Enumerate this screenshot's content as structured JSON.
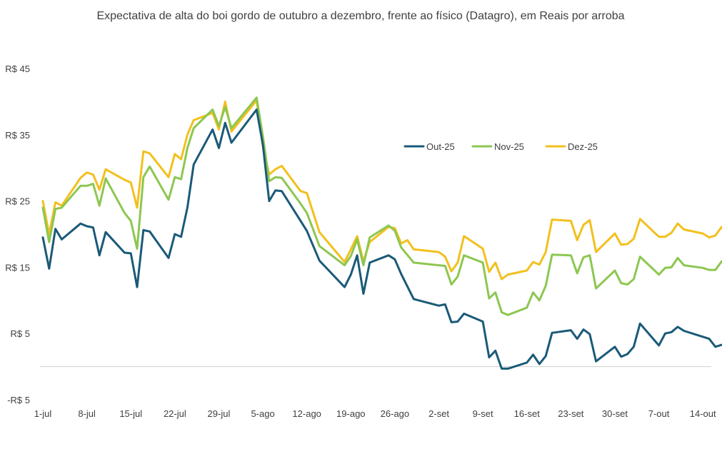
{
  "chart_data": {
    "type": "line",
    "title": "Expectativa de alta do boi gordo de outubro a dezembro, frente ao físico (Datagro), em Reais por arroba",
    "xlabel": "",
    "ylabel": "",
    "ylim": [
      -5,
      45
    ],
    "y_ticks": [
      45,
      35,
      25,
      15,
      5,
      -5
    ],
    "y_tick_labels": [
      "R$ 45",
      "R$ 35",
      "R$ 25",
      "R$ 15",
      "R$ 5",
      "-R$ 5"
    ],
    "x_ticks": [
      0,
      7,
      14,
      21,
      28,
      35,
      42,
      49,
      56,
      63,
      70,
      77,
      84,
      91,
      98,
      105
    ],
    "x_tick_labels": [
      "1-jul",
      "8-jul",
      "15-jul",
      "22-jul",
      "29-jul",
      "5-ago",
      "12-ago",
      "19-ago",
      "26-ago",
      "2-set",
      "9-set",
      "16-set",
      "23-set",
      "30-set",
      "7-out",
      "14-out"
    ],
    "x_range": [
      0,
      106
    ],
    "grid": false,
    "legend_position": "top-right",
    "colors": {
      "Out-25": "#1a5a78",
      "Nov-25": "#8cc751",
      "Dez-25": "#f2c01e",
      "zero_line": "#d0d0d0"
    },
    "series": [
      {
        "name": "Out-25",
        "points": [
          [
            0,
            19.5
          ],
          [
            1,
            14.8
          ],
          [
            2,
            20.8
          ],
          [
            3,
            19.2
          ],
          [
            6,
            21.6
          ],
          [
            7,
            21.2
          ],
          [
            8,
            21
          ],
          [
            9,
            16.8
          ],
          [
            10,
            20.3
          ],
          [
            13,
            17.2
          ],
          [
            14,
            17.1
          ],
          [
            15,
            12
          ],
          [
            16,
            20.6
          ],
          [
            17,
            20.4
          ],
          [
            20,
            16.4
          ],
          [
            21,
            20
          ],
          [
            22,
            19.6
          ],
          [
            23,
            24
          ],
          [
            24,
            30.5
          ],
          [
            27,
            35.8
          ],
          [
            28,
            33
          ],
          [
            29,
            36.8
          ],
          [
            30,
            33.8
          ],
          [
            34,
            38.8
          ],
          [
            35,
            33.5
          ],
          [
            36,
            25
          ],
          [
            37,
            26.6
          ],
          [
            38,
            26.5
          ],
          [
            41,
            22
          ],
          [
            42,
            20.5
          ],
          [
            44,
            16
          ],
          [
            48,
            12
          ],
          [
            49,
            13.9
          ],
          [
            50,
            16.8
          ],
          [
            51,
            11
          ],
          [
            52,
            15.7
          ],
          [
            55,
            16.8
          ],
          [
            56,
            16.2
          ],
          [
            57,
            14
          ],
          [
            59,
            10.2
          ],
          [
            63,
            9.2
          ],
          [
            64,
            9.4
          ],
          [
            65,
            6.7
          ],
          [
            66,
            6.8
          ],
          [
            67,
            8
          ],
          [
            70,
            6.8
          ],
          [
            71,
            1.4
          ],
          [
            72,
            2.4
          ],
          [
            73,
            -0.3
          ],
          [
            74,
            -0.3
          ],
          [
            77,
            0.6
          ],
          [
            78,
            1.8
          ],
          [
            79,
            0.4
          ],
          [
            80,
            1.6
          ],
          [
            81,
            5.1
          ],
          [
            84,
            5.5
          ],
          [
            85,
            4.2
          ],
          [
            86,
            5.6
          ],
          [
            87,
            4.9
          ],
          [
            88,
            0.8
          ],
          [
            91,
            3
          ],
          [
            92,
            1.5
          ],
          [
            93,
            1.9
          ],
          [
            94,
            3
          ],
          [
            95,
            6.5
          ],
          [
            98,
            3.2
          ],
          [
            99,
            5
          ],
          [
            100,
            5.2
          ],
          [
            101,
            6
          ],
          [
            102,
            5.4
          ],
          [
            105,
            4.5
          ],
          [
            106,
            4.2
          ],
          [
            107,
            3
          ],
          [
            108,
            3.3
          ]
        ]
      },
      {
        "name": "Nov-25",
        "points": [
          [
            0,
            24
          ],
          [
            1,
            18.8
          ],
          [
            2,
            23.8
          ],
          [
            3,
            24
          ],
          [
            6,
            27.3
          ],
          [
            7,
            27.3
          ],
          [
            8,
            27.6
          ],
          [
            9,
            24.3
          ],
          [
            10,
            28.4
          ],
          [
            13,
            23.2
          ],
          [
            14,
            22
          ],
          [
            15,
            17.8
          ],
          [
            16,
            28.6
          ],
          [
            17,
            30.2
          ],
          [
            20,
            25.2
          ],
          [
            21,
            28.6
          ],
          [
            22,
            28.3
          ],
          [
            23,
            33
          ],
          [
            24,
            36
          ],
          [
            27,
            38.8
          ],
          [
            28,
            36.3
          ],
          [
            29,
            39.2
          ],
          [
            30,
            36
          ],
          [
            34,
            40.6
          ],
          [
            35,
            34.8
          ],
          [
            36,
            28
          ],
          [
            37,
            28.6
          ],
          [
            38,
            28.5
          ],
          [
            41,
            24.6
          ],
          [
            42,
            23.2
          ],
          [
            44,
            18.2
          ],
          [
            48,
            15.3
          ],
          [
            49,
            16.7
          ],
          [
            50,
            19.2
          ],
          [
            51,
            15.3
          ],
          [
            52,
            19.5
          ],
          [
            55,
            21.3
          ],
          [
            56,
            20.5
          ],
          [
            57,
            18
          ],
          [
            59,
            15.7
          ],
          [
            63,
            15.3
          ],
          [
            64,
            15.2
          ],
          [
            65,
            12.4
          ],
          [
            66,
            13.6
          ],
          [
            67,
            16.8
          ],
          [
            70,
            15.7
          ],
          [
            71,
            10.3
          ],
          [
            72,
            11.2
          ],
          [
            73,
            8.2
          ],
          [
            74,
            7.8
          ],
          [
            77,
            8.9
          ],
          [
            78,
            11.2
          ],
          [
            79,
            10
          ],
          [
            80,
            12.2
          ],
          [
            81,
            16.9
          ],
          [
            84,
            16.8
          ],
          [
            85,
            14.1
          ],
          [
            86,
            16.5
          ],
          [
            87,
            16.8
          ],
          [
            88,
            11.8
          ],
          [
            91,
            14.5
          ],
          [
            92,
            12.6
          ],
          [
            93,
            12.4
          ],
          [
            94,
            13.2
          ],
          [
            95,
            16.6
          ],
          [
            98,
            13.9
          ],
          [
            99,
            14.9
          ],
          [
            100,
            15
          ],
          [
            101,
            16.4
          ],
          [
            102,
            15.3
          ],
          [
            105,
            14.9
          ],
          [
            106,
            14.6
          ],
          [
            107,
            14.6
          ],
          [
            108,
            15.9
          ]
        ]
      },
      {
        "name": "Dez-25",
        "points": [
          [
            0,
            25
          ],
          [
            1,
            20
          ],
          [
            2,
            24.8
          ],
          [
            3,
            24.3
          ],
          [
            6,
            28.5
          ],
          [
            7,
            29.3
          ],
          [
            8,
            29
          ],
          [
            9,
            26.7
          ],
          [
            10,
            29.8
          ],
          [
            13,
            28.2
          ],
          [
            14,
            27.8
          ],
          [
            15,
            24
          ],
          [
            16,
            32.5
          ],
          [
            17,
            32.2
          ],
          [
            20,
            28.6
          ],
          [
            21,
            32.1
          ],
          [
            22,
            31.3
          ],
          [
            23,
            35
          ],
          [
            24,
            37.2
          ],
          [
            27,
            38.3
          ],
          [
            28,
            35.8
          ],
          [
            29,
            40
          ],
          [
            30,
            35.5
          ],
          [
            34,
            40.2
          ],
          [
            35,
            33.2
          ],
          [
            36,
            29
          ],
          [
            37,
            29.8
          ],
          [
            38,
            30.3
          ],
          [
            41,
            26.5
          ],
          [
            42,
            26.2
          ],
          [
            44,
            20.3
          ],
          [
            48,
            15.8
          ],
          [
            49,
            17.7
          ],
          [
            50,
            19.7
          ],
          [
            51,
            15.9
          ],
          [
            52,
            18.8
          ],
          [
            55,
            21.1
          ],
          [
            56,
            20.9
          ],
          [
            57,
            18.6
          ],
          [
            58,
            19.1
          ],
          [
            59,
            17.7
          ],
          [
            63,
            17.3
          ],
          [
            64,
            16.6
          ],
          [
            65,
            14.4
          ],
          [
            66,
            15.7
          ],
          [
            67,
            19.7
          ],
          [
            70,
            17.8
          ],
          [
            71,
            14.3
          ],
          [
            72,
            15.7
          ],
          [
            73,
            13.2
          ],
          [
            74,
            13.9
          ],
          [
            77,
            14.5
          ],
          [
            78,
            15.8
          ],
          [
            79,
            15.4
          ],
          [
            80,
            17.3
          ],
          [
            81,
            22.2
          ],
          [
            84,
            22
          ],
          [
            85,
            19.1
          ],
          [
            86,
            21.4
          ],
          [
            87,
            22.1
          ],
          [
            88,
            17.3
          ],
          [
            91,
            20.1
          ],
          [
            92,
            18.4
          ],
          [
            93,
            18.5
          ],
          [
            94,
            19.3
          ],
          [
            95,
            22.3
          ],
          [
            98,
            19.6
          ],
          [
            99,
            19.6
          ],
          [
            100,
            20.2
          ],
          [
            101,
            21.6
          ],
          [
            102,
            20.7
          ],
          [
            105,
            20.1
          ],
          [
            106,
            19.5
          ],
          [
            107,
            19.8
          ],
          [
            108,
            21.1
          ]
        ]
      }
    ]
  }
}
